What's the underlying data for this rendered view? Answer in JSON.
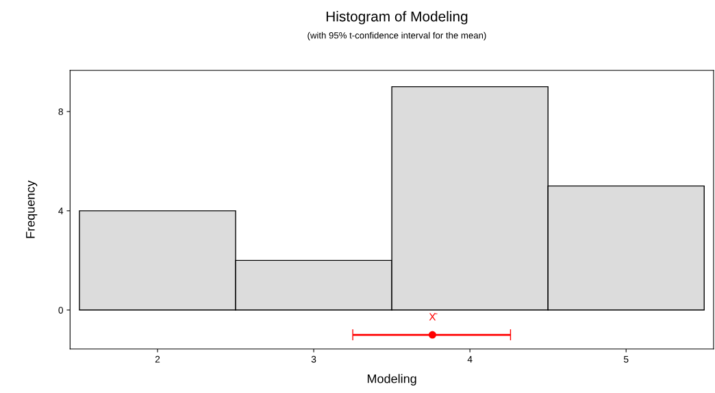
{
  "chart_data": {
    "type": "histogram",
    "title": "Histogram of Modeling",
    "subtitle": "(with 95% t-confidence interval for the mean)",
    "xlabel": "Modeling",
    "ylabel": "Frequency",
    "bins": [
      1.5,
      2.5,
      3.5,
      4.5,
      5.5
    ],
    "values": [
      4,
      2,
      9,
      5
    ],
    "color": "#dcdcdc",
    "series": [
      {
        "type": "scatter",
        "color": "#ff0000",
        "x": [
          3.76
        ],
        "values": [
          -1
        ],
        "xerrors": [
          [
            3.25,
            4.26
          ]
        ],
        "marker": "circle"
      }
    ],
    "annotations": [
      "X̄"
    ],
    "xlim": [
      1.44,
      5.56
    ],
    "xticks": [
      2,
      3,
      4,
      5
    ],
    "ylim": [
      -1.57,
      9.66
    ],
    "yticks": [
      0,
      4,
      8
    ],
    "grid": false,
    "legend": false
  }
}
